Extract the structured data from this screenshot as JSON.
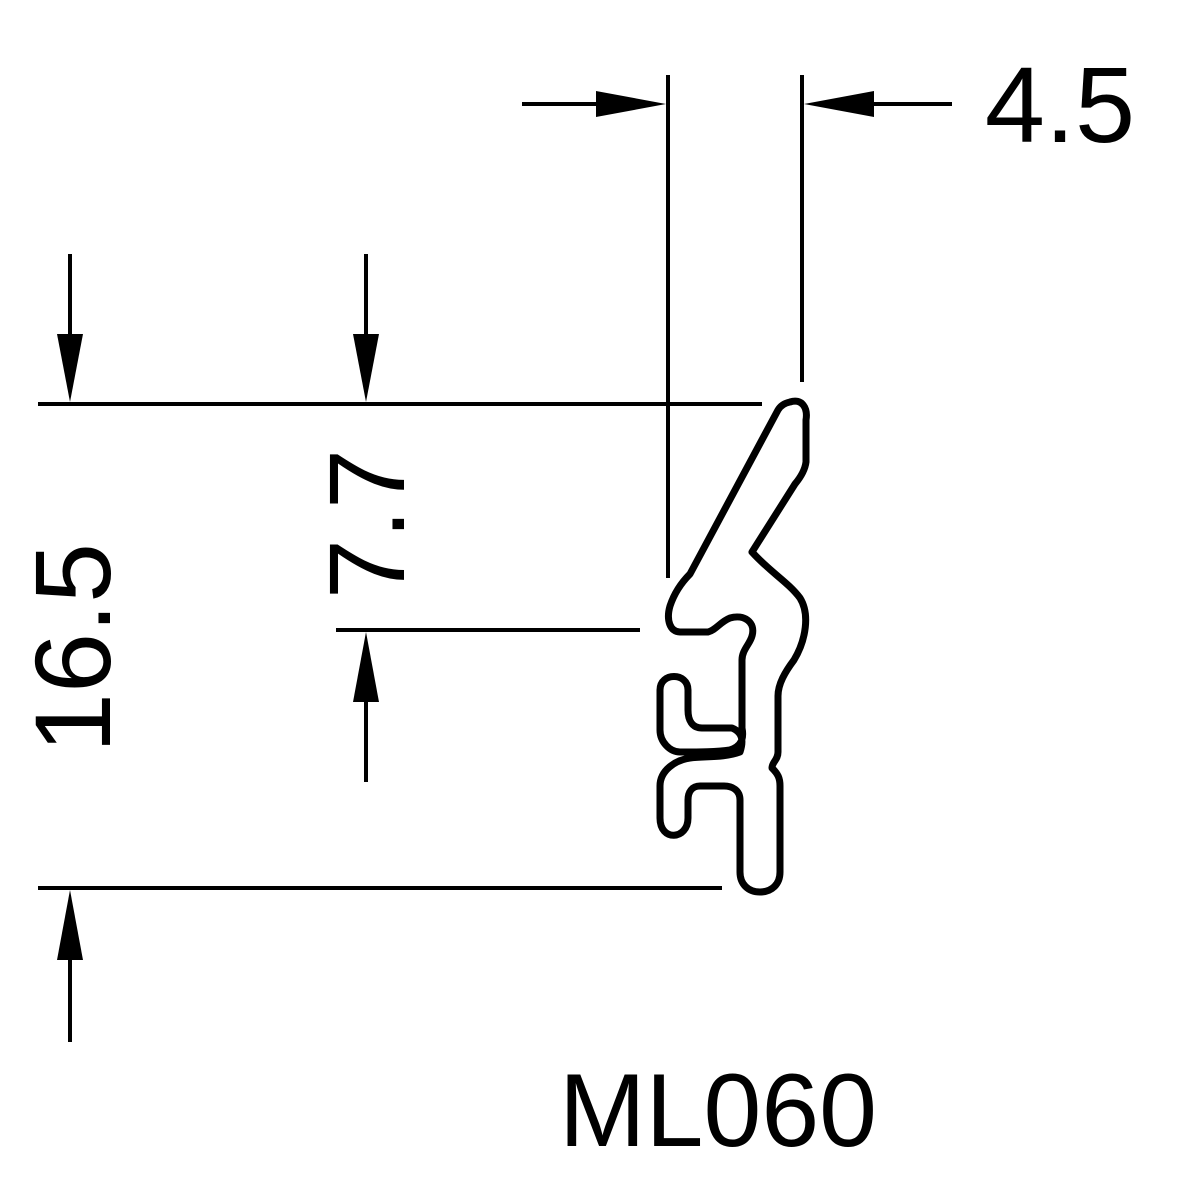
{
  "drawing": {
    "model_code": "ML060",
    "dimensions": {
      "width_top": "4.5",
      "height_total": "16.5",
      "height_upper": "7.7"
    }
  }
}
